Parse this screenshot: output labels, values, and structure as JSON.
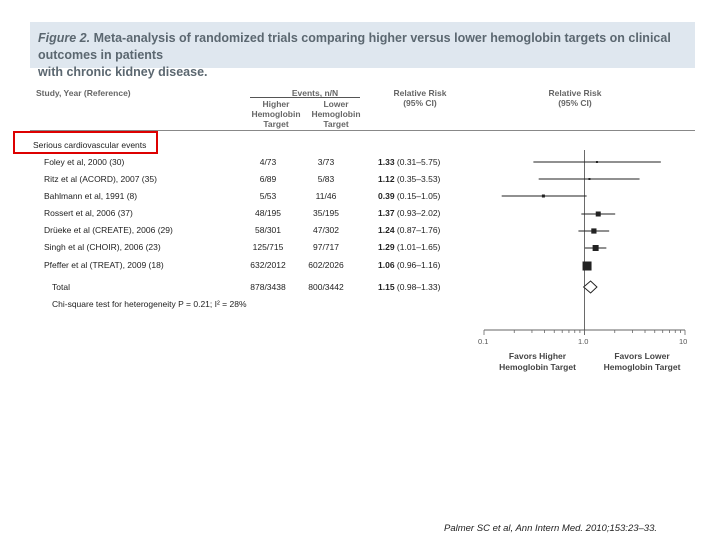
{
  "figure": {
    "label": "Figure 2.",
    "title_line1": "Meta-analysis of randomized trials comparing higher versus lower hemoglobin targets on clinical outcomes in patients",
    "title_line2": "with chronic kidney disease."
  },
  "table_header": {
    "study": "Study, Year (Reference)",
    "events": "Events, n/N",
    "higher": "Higher",
    "lower": "Lower",
    "hemoglobin": "Hemoglobin",
    "target": "Target",
    "rr": "Relative Risk",
    "ci": "(95% CI)",
    "plot_rr": "Relative Risk",
    "plot_ci": "(95% CI)"
  },
  "category": "Serious cardiovascular events",
  "rows": [
    {
      "study": "Foley et al, 2000 (30)",
      "higher": "4/73",
      "lower": "3/73",
      "rr": "1.33",
      "ci": "(0.31–5.75)"
    },
    {
      "study": "Ritz et al (ACORD), 2007 (35)",
      "higher": "6/89",
      "lower": "5/83",
      "rr": "1.12",
      "ci": "(0.35–3.53)"
    },
    {
      "study": "Bahlmann et al, 1991 (8)",
      "higher": "5/53",
      "lower": "11/46",
      "rr": "0.39",
      "ci": "(0.15–1.05)"
    },
    {
      "study": "Rossert et al, 2006 (37)",
      "higher": "48/195",
      "lower": "35/195",
      "rr": "1.37",
      "ci": "(0.93–2.02)"
    },
    {
      "study": "Drüeke et al (CREATE), 2006 (29)",
      "higher": "58/301",
      "lower": "47/302",
      "rr": "1.24",
      "ci": "(0.87–1.76)"
    },
    {
      "study": "Singh et al (CHOIR), 2006 (23)",
      "higher": "125/715",
      "lower": "97/717",
      "rr": "1.29",
      "ci": "(1.01–1.65)"
    },
    {
      "study": "Pfeffer et al (TREAT), 2009 (18)",
      "higher": "632/2012",
      "lower": "602/2026",
      "rr": "1.06",
      "ci": "(0.96–1.16)"
    }
  ],
  "total": {
    "study": "Total",
    "higher": "878/3438",
    "lower": "800/3442",
    "rr": "1.15",
    "ci": "(0.98–1.33)"
  },
  "heterogeneity": "Chi-square test for heterogeneity P = 0.21; I² = 28%",
  "plot": {
    "ticks": [
      "0.1",
      "1.0",
      "10"
    ],
    "left_label_1": "Favors Higher",
    "left_label_2": "Hemoglobin Target",
    "right_label_1": "Favors Lower",
    "right_label_2": "Hemoglobin Target"
  },
  "chart_data": {
    "type": "scatter",
    "x_scale": "log",
    "xlim": [
      0.1,
      10
    ],
    "reference_line": 1.0,
    "series": [
      {
        "values": [
          {
            "study": "Foley et al, 2000 (30)",
            "rr": 1.33,
            "lo": 0.31,
            "hi": 5.75,
            "weight": 1
          },
          {
            "study": "Ritz et al (ACORD), 2007 (35)",
            "rr": 1.12,
            "lo": 0.35,
            "hi": 3.53,
            "weight": 1
          },
          {
            "study": "Bahlmann et al, 1991 (8)",
            "rr": 0.39,
            "lo": 0.15,
            "hi": 1.05,
            "weight": 1.5
          },
          {
            "study": "Rossert et al, 2006 (37)",
            "rr": 1.37,
            "lo": 0.93,
            "hi": 2.02,
            "weight": 2.5
          },
          {
            "study": "Drüeke et al (CREATE), 2006 (29)",
            "rr": 1.24,
            "lo": 0.87,
            "hi": 1.76,
            "weight": 2.6
          },
          {
            "study": "Singh et al (CHOIR), 2006 (23)",
            "rr": 1.29,
            "lo": 1.01,
            "hi": 1.65,
            "weight": 3
          },
          {
            "study": "Pfeffer et al (TREAT), 2009 (18)",
            "rr": 1.06,
            "lo": 0.96,
            "hi": 1.16,
            "weight": 4.5
          }
        ]
      }
    ],
    "pooled": {
      "rr": 1.15,
      "lo": 0.98,
      "hi": 1.33
    }
  },
  "citation": "Palmer SC et al, Ann Intern Med. 2010;153:23–33."
}
